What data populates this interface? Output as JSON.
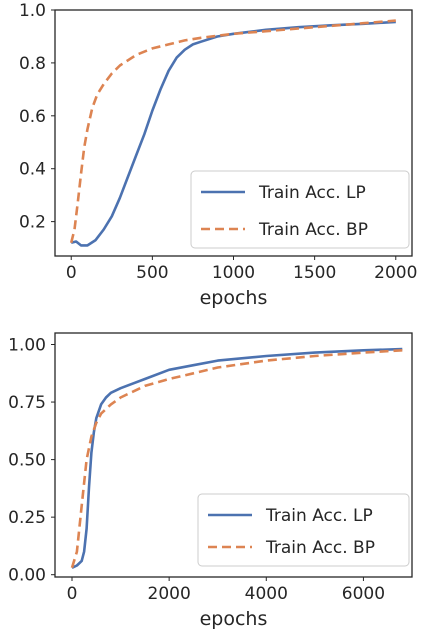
{
  "chart_data": [
    {
      "type": "line",
      "xlabel": "epochs",
      "ylabel": "",
      "xlim": [
        -100,
        2100
      ],
      "ylim": [
        0.07,
        1.0
      ],
      "xticks": [
        0,
        500,
        1000,
        1500,
        2000
      ],
      "xtick_labels": [
        "0",
        "500",
        "1000",
        "1500",
        "2000"
      ],
      "yticks": [
        0.2,
        0.4,
        0.6,
        0.8,
        1.0
      ],
      "ytick_labels": [
        "0.2",
        "0.4",
        "0.6",
        "0.8",
        "1.0"
      ],
      "grid": false,
      "legend_position": "lower-right",
      "series": [
        {
          "name": "Train Acc. LP",
          "color": "#4c72b0",
          "dash": "solid",
          "x": [
            0,
            30,
            60,
            100,
            150,
            200,
            250,
            300,
            350,
            400,
            450,
            500,
            550,
            600,
            650,
            700,
            750,
            800,
            900,
            1000,
            1200,
            1400,
            1600,
            1800,
            2000
          ],
          "y": [
            0.12,
            0.125,
            0.11,
            0.11,
            0.13,
            0.17,
            0.22,
            0.29,
            0.37,
            0.45,
            0.53,
            0.62,
            0.7,
            0.77,
            0.82,
            0.85,
            0.87,
            0.88,
            0.9,
            0.91,
            0.925,
            0.935,
            0.942,
            0.948,
            0.955
          ]
        },
        {
          "name": "Train Acc. BP",
          "color": "#dd8452",
          "dash": "dashed",
          "x": [
            0,
            20,
            40,
            60,
            80,
            100,
            130,
            160,
            200,
            250,
            300,
            400,
            500,
            600,
            700,
            800,
            1000,
            1200,
            1400,
            1600,
            1800,
            2000
          ],
          "y": [
            0.12,
            0.17,
            0.27,
            0.38,
            0.48,
            0.55,
            0.63,
            0.68,
            0.72,
            0.76,
            0.79,
            0.83,
            0.855,
            0.87,
            0.885,
            0.895,
            0.91,
            0.92,
            0.93,
            0.94,
            0.95,
            0.96
          ]
        }
      ]
    },
    {
      "type": "line",
      "xlabel": "epochs",
      "ylabel": "",
      "xlim": [
        -350,
        7000
      ],
      "ylim": [
        -0.01,
        1.05
      ],
      "xticks": [
        0,
        2000,
        4000,
        6000
      ],
      "xtick_labels": [
        "0",
        "2000",
        "4000",
        "6000"
      ],
      "yticks": [
        0.0,
        0.25,
        0.5,
        0.75,
        1.0
      ],
      "ytick_labels": [
        "0.00",
        "0.25",
        "0.50",
        "0.75",
        "1.00"
      ],
      "grid": false,
      "legend_position": "lower-right",
      "series": [
        {
          "name": "Train Acc. LP",
          "color": "#4c72b0",
          "dash": "solid",
          "x": [
            0,
            100,
            200,
            250,
            300,
            350,
            400,
            450,
            500,
            600,
            700,
            800,
            1000,
            1500,
            2000,
            2500,
            3000,
            4000,
            5000,
            6000,
            6800
          ],
          "y": [
            0.03,
            0.04,
            0.06,
            0.1,
            0.2,
            0.38,
            0.53,
            0.62,
            0.68,
            0.74,
            0.77,
            0.79,
            0.81,
            0.85,
            0.89,
            0.91,
            0.93,
            0.95,
            0.965,
            0.975,
            0.98
          ]
        },
        {
          "name": "Train Acc. BP",
          "color": "#dd8452",
          "dash": "dashed",
          "x": [
            0,
            100,
            200,
            300,
            400,
            500,
            600,
            800,
            1000,
            1500,
            2000,
            2500,
            3000,
            4000,
            5000,
            6000,
            6800
          ],
          "y": [
            0.03,
            0.1,
            0.3,
            0.5,
            0.6,
            0.66,
            0.7,
            0.74,
            0.77,
            0.82,
            0.85,
            0.875,
            0.9,
            0.93,
            0.95,
            0.965,
            0.975
          ]
        }
      ]
    }
  ]
}
